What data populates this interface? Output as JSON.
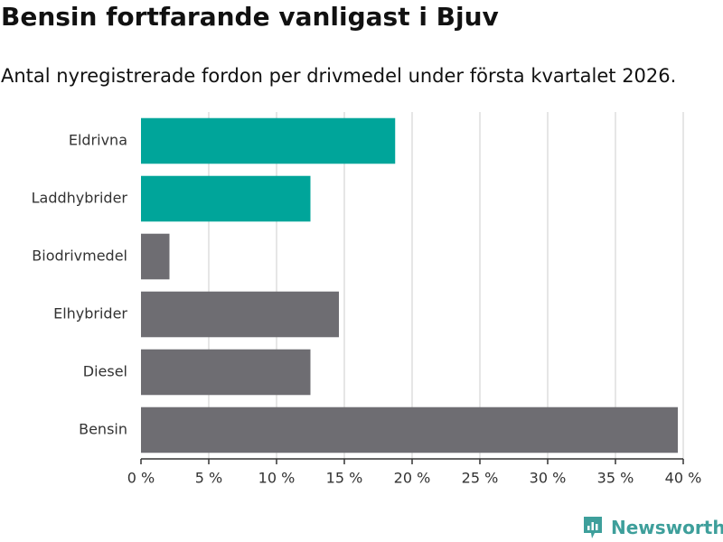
{
  "chart_data": {
    "type": "bar",
    "orientation": "horizontal",
    "title": "Bensin fortfarande vanligast i Bjuv",
    "subtitle": "Antal nyregistrerade fordon per drivmedel under första kvartalet 2026.",
    "categories": [
      "Eldrivna",
      "Laddhybrider",
      "Biodrivmedel",
      "Elhybrider",
      "Diesel",
      "Bensin"
    ],
    "values": [
      18.75,
      12.5,
      2.1,
      14.6,
      12.5,
      39.6
    ],
    "unit": "%",
    "xlim": [
      0,
      40
    ],
    "xticks": [
      0,
      5,
      10,
      15,
      20,
      25,
      30,
      35,
      40
    ],
    "xtick_labels": [
      "0 %",
      "5 %",
      "10 %",
      "15 %",
      "20 %",
      "25 %",
      "30 %",
      "35 %",
      "40 %"
    ],
    "grid": true,
    "colors": {
      "highlight": "#00a59a",
      "default": "#6e6d72",
      "grid": "#dddddd",
      "axis": "#333333"
    },
    "highlighted": [
      "Eldrivna",
      "Laddhybrider"
    ]
  },
  "brand": {
    "name": "Newsworthy",
    "color": "#3e9f9b"
  }
}
